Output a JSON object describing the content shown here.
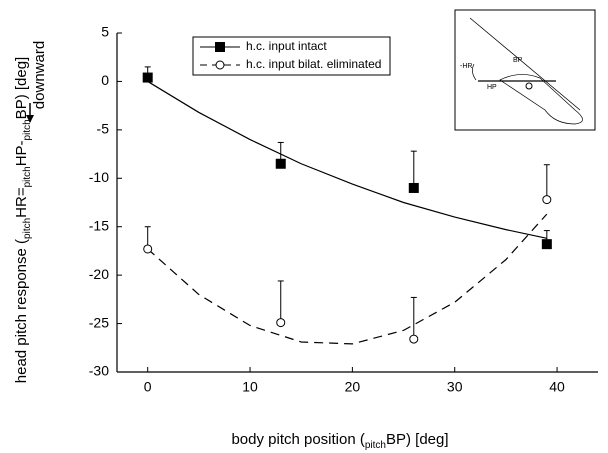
{
  "chart_data": {
    "type": "line",
    "xlabel_parts": [
      {
        "text": "body pitch position ("
      },
      {
        "text": "pitch",
        "sub": true
      },
      {
        "text": "BP) [deg]"
      }
    ],
    "ylabel_parts": [
      {
        "text": "head pitch response ("
      },
      {
        "text": "pitch",
        "sub": true
      },
      {
        "text": "HR="
      },
      {
        "text": "pitch",
        "sub": true
      },
      {
        "text": "HP-"
      },
      {
        "text": "pitch",
        "sub": true
      },
      {
        "text": "BP) [deg]"
      }
    ],
    "ylabel_note": "downward",
    "xlim": [
      -3,
      44
    ],
    "ylim": [
      -30,
      5
    ],
    "xticks": [
      0,
      10,
      20,
      30,
      40
    ],
    "yticks": [
      5,
      0,
      -5,
      -10,
      -15,
      -20,
      -25,
      -30
    ],
    "series": [
      {
        "name": "h.c. input intact",
        "color": "#000000",
        "marker": "square",
        "dashed": false,
        "x": [
          0,
          13,
          26,
          39
        ],
        "values": [
          0.4,
          -8.5,
          -11,
          -16.8
        ],
        "errors": [
          1.1,
          2.2,
          3.8,
          1.4
        ],
        "fit_x": [
          0,
          5,
          10,
          15,
          20,
          25,
          30,
          35,
          39
        ],
        "fit_values": [
          0,
          -3.2,
          -6,
          -8.5,
          -10.6,
          -12.5,
          -14,
          -15.3,
          -16.2
        ]
      },
      {
        "name": "h.c. input bilat. eliminated",
        "color": "#000000",
        "marker": "circle",
        "dashed": true,
        "x": [
          0,
          13,
          26,
          39
        ],
        "values": [
          -17.3,
          -24.9,
          -26.6,
          -12.2
        ],
        "errors": [
          2.3,
          4.3,
          4.3,
          3.6
        ],
        "fit_x": [
          0,
          5,
          10,
          15,
          20,
          25,
          30,
          35,
          39
        ],
        "fit_values": [
          -17.3,
          -22,
          -25.2,
          -26.9,
          -27.1,
          -25.7,
          -22.8,
          -18.4,
          -13.7
        ]
      }
    ],
    "inset_labels": [
      "-HR",
      "BP",
      "HP"
    ]
  }
}
